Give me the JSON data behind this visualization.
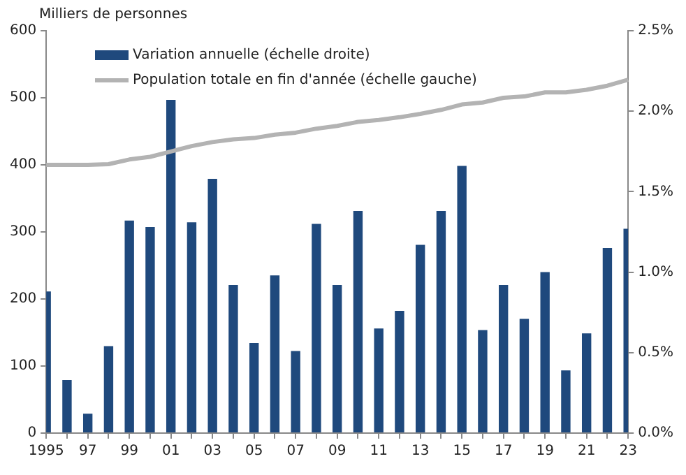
{
  "chart_data": {
    "type": "bar",
    "ylabel": "Milliers de personnes",
    "categories": [
      "1995",
      null,
      "97",
      null,
      "99",
      null,
      "01",
      null,
      "03",
      null,
      "05",
      null,
      "07",
      null,
      "09",
      null,
      "11",
      null,
      "13",
      null,
      "15",
      null,
      "17",
      null,
      "19",
      null,
      "21",
      null,
      "23"
    ],
    "series": [
      {
        "name": "Variation annuelle (échelle droite)",
        "axis": "y2",
        "color": "#1f497d",
        "values": [
          0.88,
          0.33,
          0.12,
          0.54,
          1.32,
          1.28,
          2.07,
          1.31,
          1.58,
          0.92,
          0.56,
          0.98,
          0.51,
          1.3,
          0.92,
          1.38,
          0.65,
          0.76,
          1.17,
          1.38,
          1.66,
          0.64,
          0.92,
          0.71,
          1.0,
          0.39,
          0.62,
          1.15,
          1.27
        ]
      },
      {
        "name": "Population totale en fin d'année (échelle gauche)",
        "type": "line",
        "color": "#b3b3b3",
        "values": [
          400,
          400,
          400,
          401,
          408,
          412,
          420,
          428,
          434,
          438,
          440,
          445,
          448,
          454,
          458,
          464,
          467,
          471,
          476,
          482,
          490,
          493,
          500,
          502,
          508,
          508,
          512,
          518,
          527
        ]
      }
    ],
    "ylim": [
      0,
      600
    ],
    "yticks": [
      0,
      100,
      200,
      300,
      400,
      500,
      600
    ],
    "y2lim": [
      0,
      2.5
    ],
    "y2ticks": [
      {
        "value": 0,
        "label": "0.0%"
      },
      {
        "value": 0.5,
        "label": "0.5%"
      },
      {
        "value": 1,
        "label": "1.0%"
      },
      {
        "value": 1.5,
        "label": "1.5%"
      },
      {
        "value": 2,
        "label": "2.0%"
      },
      {
        "value": 2.5,
        "label": "2.5%"
      }
    ],
    "grid": false,
    "legend": "top left",
    "marker": "none"
  }
}
